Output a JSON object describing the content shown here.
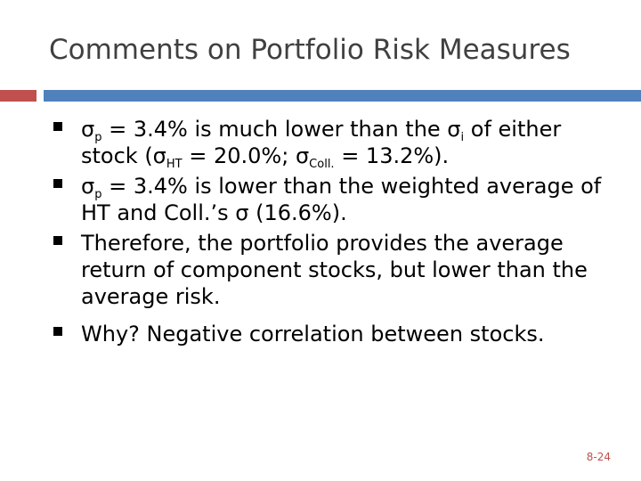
{
  "title": "Comments on Portfolio Risk Measures",
  "colors": {
    "divider_left": "#c0504d",
    "divider_right": "#4f81bd",
    "title_text": "#404040",
    "page_number": "#c0504d"
  },
  "bullets": [
    {
      "p1": "σ",
      "s1": "p",
      "p2": " = 3.4% is much lower than the σ",
      "s2": "i",
      "p3": " of either stock (σ",
      "s3": "HT",
      "p4": " = 20.0%; σ",
      "s4": "Coll.",
      "p5": " = 13.2%)."
    },
    {
      "p1": "σ",
      "s1": "p",
      "p2": " = 3.4% is lower than the weighted average of HT and Coll.’s σ (16.6%)."
    },
    {
      "text": "Therefore, the portfolio provides the average return of component stocks, but lower than the average risk."
    },
    {
      "text": "Why? Negative correlation between stocks."
    }
  ],
  "page_number": "8-24"
}
